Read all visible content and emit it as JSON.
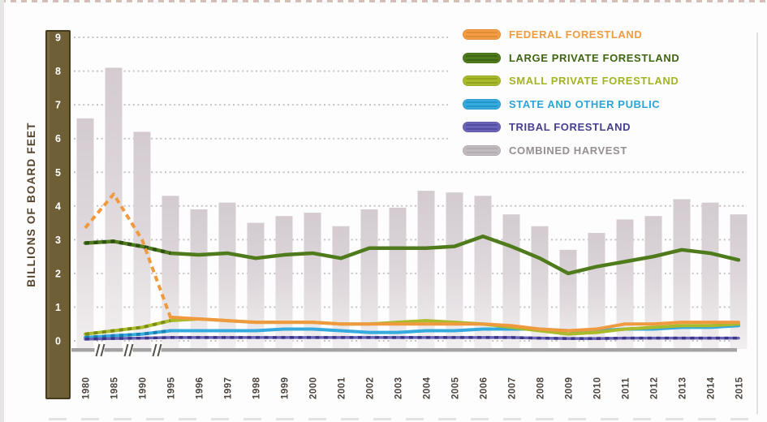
{
  "y_axis": {
    "label": "BILLIONS OF BOARD FEET",
    "ticks": [
      "9",
      "8",
      "7",
      "6",
      "5",
      "4",
      "3",
      "2",
      "1",
      "0"
    ],
    "bar_color": "#6f5f37",
    "bar_border_color": "#463a1d",
    "tick_text_color": "#ffffff",
    "label_color": "#54452c"
  },
  "x_axis": {
    "line_color": "#a5a2a4",
    "label_color": "#4c443e",
    "break_mark_color": "#56504b"
  },
  "chart_data": {
    "type": "bar+line",
    "ylabel": "BILLIONS OF BOARD FEET",
    "ylim": [
      0,
      9
    ],
    "grid": "dotted-horizontal",
    "legend_position": "top-right",
    "categories": [
      "1980",
      "1985",
      "1990",
      "1995",
      "1996",
      "1997",
      "1998",
      "1999",
      "2000",
      "2001",
      "2002",
      "2003",
      "2004",
      "2005",
      "2006",
      "2007",
      "2008",
      "2009",
      "2010",
      "2011",
      "2012",
      "2013",
      "2014",
      "2015"
    ],
    "x_axis_breaks_between": [
      [
        "1980",
        "1985"
      ],
      [
        "1985",
        "1990"
      ],
      [
        "1990",
        "1995"
      ]
    ],
    "bar_series": {
      "name": "COMBINED HARVEST",
      "color": "#d3cbd0",
      "values": [
        6.6,
        8.1,
        6.2,
        4.3,
        3.9,
        4.1,
        3.5,
        3.7,
        3.8,
        3.4,
        3.9,
        3.95,
        4.45,
        4.4,
        4.3,
        3.75,
        3.4,
        2.7,
        3.2,
        3.6,
        3.7,
        4.2,
        4.1,
        3.75
      ]
    },
    "line_series": [
      {
        "name": "FEDERAL FORESTLAND",
        "color": "#f09a3f",
        "dash_color": "#c97f2a",
        "dashed_before": "1995",
        "values": [
          3.35,
          4.35,
          3.0,
          0.7,
          0.65,
          0.6,
          0.55,
          0.55,
          0.55,
          0.5,
          0.5,
          0.5,
          0.5,
          0.5,
          0.5,
          0.45,
          0.35,
          0.3,
          0.35,
          0.5,
          0.5,
          0.55,
          0.55,
          0.55
        ]
      },
      {
        "name": "LARGE PRIVATE FORESTLAND",
        "color": "#4f7b1d",
        "dash_color": "#2f5210",
        "dashed_before": "1995",
        "values": [
          2.9,
          2.95,
          2.8,
          2.6,
          2.55,
          2.6,
          2.45,
          2.55,
          2.6,
          2.45,
          2.75,
          2.75,
          2.75,
          2.8,
          3.1,
          2.8,
          2.45,
          2.0,
          2.2,
          2.35,
          2.5,
          2.7,
          2.6,
          2.4
        ]
      },
      {
        "name": "SMALL PRIVATE FORESTLAND",
        "color": "#a9ba2a",
        "dash_color": "#7d8c15",
        "dashed_before": "1995",
        "values": [
          0.2,
          0.3,
          0.4,
          0.6,
          0.65,
          0.6,
          0.55,
          0.55,
          0.55,
          0.5,
          0.5,
          0.55,
          0.6,
          0.55,
          0.5,
          0.4,
          0.3,
          0.2,
          0.25,
          0.35,
          0.4,
          0.45,
          0.45,
          0.5
        ]
      },
      {
        "name": "STATE AND OTHER PUBLIC",
        "color": "#35aade",
        "dash_color": "#1b7fb0",
        "dashed_before": "1995",
        "values": [
          0.1,
          0.15,
          0.2,
          0.3,
          0.3,
          0.3,
          0.3,
          0.35,
          0.35,
          0.3,
          0.25,
          0.25,
          0.3,
          0.3,
          0.35,
          0.35,
          0.35,
          0.3,
          0.3,
          0.35,
          0.35,
          0.4,
          0.4,
          0.45
        ]
      },
      {
        "name": "TRIBAL FORESTLAND",
        "color": "#6a64b8",
        "dash_color": "#3c3688",
        "dashed_full": true,
        "values": [
          0.05,
          0.07,
          0.08,
          0.1,
          0.1,
          0.1,
          0.1,
          0.1,
          0.1,
          0.1,
          0.1,
          0.1,
          0.1,
          0.1,
          0.1,
          0.1,
          0.08,
          0.07,
          0.07,
          0.08,
          0.08,
          0.08,
          0.08,
          0.08
        ]
      }
    ],
    "legend": {
      "entries": [
        {
          "label": "FEDERAL FORESTLAND",
          "swatch_color": "#f39c42",
          "swatch_dark": "#c97f2a",
          "text_color": "#ef9b3e"
        },
        {
          "label": "LARGE PRIVATE FORESTLAND",
          "swatch_color": "#4f7b1d",
          "swatch_dark": "#2f5210",
          "text_color": "#3f6512"
        },
        {
          "label": "SMALL PRIVATE FORESTLAND",
          "swatch_color": "#a9ba2a",
          "swatch_dark": "#7d8c15",
          "text_color": "#a3b421"
        },
        {
          "label": "STATE AND OTHER PUBLIC",
          "swatch_color": "#35aade",
          "swatch_dark": "#1b7fb0",
          "text_color": "#2ba4d8"
        },
        {
          "label": "TRIBAL FORESTLAND",
          "swatch_color": "#6a64b8",
          "swatch_dark": "#3c3688",
          "text_color": "#453f8f"
        },
        {
          "label": "COMBINED HARVEST",
          "swatch_color": "#c2bcc0",
          "swatch_dark": "#a39ca0",
          "text_color": "#968f93"
        }
      ]
    }
  }
}
